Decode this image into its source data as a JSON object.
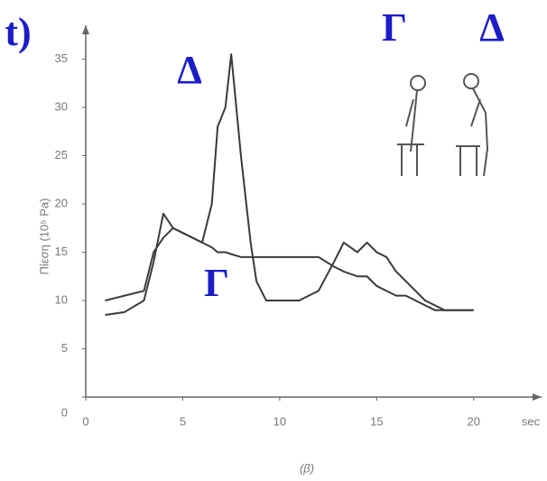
{
  "chart_data": {
    "type": "line",
    "panel_label": "t)",
    "y_label": "Πίεση (10⁵ Pa)",
    "x_label": "sec",
    "caption": "(β)",
    "figure_labels": [
      "Γ",
      "Δ"
    ],
    "x": [
      1,
      2,
      3,
      3.5,
      4,
      4.5,
      5,
      6,
      6.5,
      6.8,
      7.2,
      7.5,
      8,
      8.5,
      8.8,
      9.3,
      10,
      11,
      12,
      12.8,
      13.3,
      14,
      14.5,
      15,
      15.5,
      16,
      16.5,
      17,
      17.5,
      18,
      18.5,
      19,
      20
    ],
    "series": [
      {
        "name": "Δ",
        "color": "#3a3a3a",
        "values": [
          8.5,
          8.8,
          10,
          14,
          19,
          17.5,
          17,
          16,
          20,
          28,
          30,
          35.5,
          25,
          16,
          12,
          10,
          10,
          10,
          11,
          14,
          16,
          15,
          16,
          15,
          14.5,
          13,
          12,
          11,
          10,
          9.5,
          9,
          9,
          9
        ]
      },
      {
        "name": "Γ",
        "color": "#3a3a3a",
        "values": [
          10,
          10.5,
          11,
          15,
          16.5,
          17.5,
          17,
          16,
          15.5,
          15,
          15,
          14.8,
          14.5,
          14.5,
          14.5,
          14.5,
          14.5,
          14.5,
          14.5,
          13.5,
          13,
          12.5,
          12.5,
          11.5,
          11,
          10.5,
          10.5,
          10,
          9.5,
          9,
          9,
          9,
          9
        ]
      }
    ],
    "xlim": [
      0,
      23.5
    ],
    "ylim": [
      0,
      38.5
    ],
    "xticks": [
      0,
      5,
      10,
      15,
      20
    ],
    "yticks": [
      0,
      5,
      10,
      15,
      20,
      25,
      30,
      35
    ]
  }
}
